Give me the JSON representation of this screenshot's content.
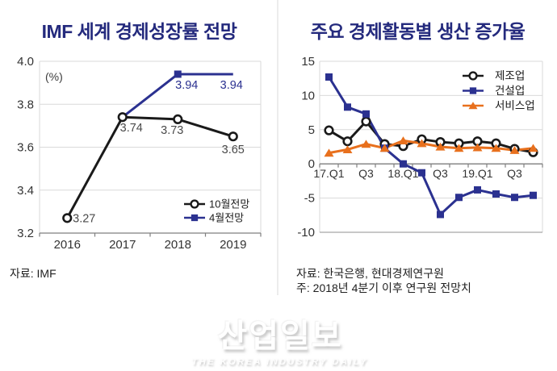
{
  "watermark": {
    "title": "산업일보",
    "subtitle": "THE KOREA INDUSTRY DAILY"
  },
  "colors": {
    "title_navy": "#242a7d",
    "series_black": "#1a1a1a",
    "series_blue": "#2b3190",
    "series_orange": "#e8701d",
    "gridline": "#d9d9d9",
    "axis": "#7f7f7f",
    "tick_text": "#333333"
  },
  "chart_data": [
    {
      "type": "line",
      "title": "IMF 세계 경제성장률 전망",
      "unit_label": "(%)",
      "categories": [
        "2016",
        "2017",
        "2018",
        "2019"
      ],
      "ylim": [
        3.2,
        4.0
      ],
      "yticks": [
        3.2,
        3.4,
        3.6,
        3.8,
        4.0
      ],
      "ytick_labels": [
        "3.2",
        "3.4",
        "3.6",
        "3.8",
        "4.0"
      ],
      "grid": true,
      "legend_position": "bottom-right-inside",
      "source": "자료: IMF",
      "series": [
        {
          "key": "october-forecast",
          "name": "10월전망",
          "color": "#1a1a1a",
          "label_color": "#4a4a4a",
          "marker": "circle-open",
          "x": [
            0,
            1,
            2,
            3
          ],
          "values": [
            3.27,
            3.74,
            3.73,
            3.65
          ],
          "point_labels": [
            "3.27",
            "3.74",
            "3.73",
            "3.65"
          ],
          "label_offsets": [
            [
              21,
              5
            ],
            [
              11,
              18
            ],
            [
              -7,
              18
            ],
            [
              0,
              21
            ]
          ]
        },
        {
          "key": "april-forecast",
          "name": "4월전망",
          "color": "#2b3190",
          "label_color": "#2b3190",
          "marker": "square",
          "x": [
            1,
            2,
            3
          ],
          "values": [
            3.74,
            3.94,
            3.94
          ],
          "point_labels": [
            null,
            "3.94",
            "3.94"
          ],
          "label_offsets": [
            null,
            [
              11,
              18
            ],
            [
              -2,
              18
            ]
          ],
          "marker_indices": [
            1
          ]
        }
      ]
    },
    {
      "type": "line",
      "title": "주요 경제활동별 생산 증가율",
      "categories": [
        "17.Q1",
        "17.Q2",
        "17.Q3",
        "17.Q4",
        "18.Q1",
        "18.Q2",
        "18.Q3",
        "18.Q4",
        "19.Q1",
        "19.Q2",
        "19.Q3",
        "19.Q4"
      ],
      "xtick_indices": [
        0,
        2,
        4,
        6,
        8,
        10
      ],
      "xtick_labels": [
        "17.Q1",
        "Q3",
        "18.Q1",
        "Q3",
        "19.Q1",
        "Q3"
      ],
      "ylim": [
        -10,
        15
      ],
      "yticks": [
        -10,
        -5,
        0,
        5,
        10,
        15
      ],
      "ytick_labels": [
        "-10",
        "-5",
        "0",
        "5",
        "10",
        "15"
      ],
      "grid": true,
      "legend_position": "top-right-inside",
      "source": "자료: 한국은행, 현대경제연구원",
      "note": "주: 2018년 4분기 이후 연구원 전망치",
      "series": [
        {
          "key": "manufacturing",
          "name": "제조업",
          "color": "#1a1a1a",
          "marker": "circle-open",
          "values": [
            4.9,
            3.3,
            6.2,
            2.9,
            2.6,
            3.6,
            3.2,
            3.0,
            3.3,
            3.0,
            2.2,
            1.7
          ]
        },
        {
          "key": "construction",
          "name": "건설업",
          "color": "#2b3190",
          "marker": "square",
          "values": [
            12.7,
            8.3,
            7.3,
            2.3,
            0.0,
            -1.3,
            -7.4,
            -4.9,
            -3.8,
            -4.4,
            -4.9,
            -4.6
          ]
        },
        {
          "key": "services",
          "name": "서비스업",
          "color": "#e8701d",
          "marker": "triangle",
          "values": [
            1.6,
            2.1,
            2.9,
            2.3,
            3.4,
            3.0,
            2.5,
            2.3,
            2.4,
            2.3,
            2.0,
            2.3
          ]
        }
      ]
    }
  ]
}
